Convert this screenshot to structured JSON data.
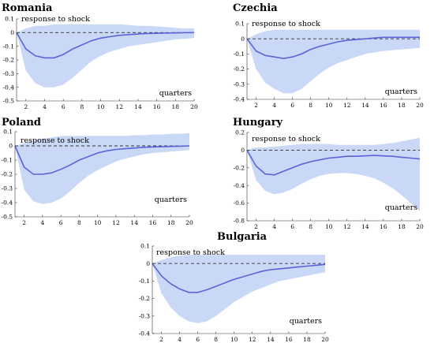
{
  "chart_data": [
    {
      "type": "line",
      "title": "Romania",
      "annotation": "response to shock",
      "xlabel": "quarters",
      "x": [
        1,
        2,
        3,
        4,
        5,
        6,
        7,
        8,
        9,
        10,
        11,
        12,
        13,
        14,
        15,
        16,
        17,
        18,
        19,
        20
      ],
      "xticks": [
        2,
        4,
        6,
        8,
        10,
        12,
        14,
        16,
        18,
        20
      ],
      "ylim": [
        -0.5,
        0.1
      ],
      "yticks": [
        0.1,
        0,
        -0.1,
        -0.2,
        -0.3,
        -0.4,
        -0.5
      ],
      "ytick_labels": [
        "0.1",
        "0",
        "-0.1",
        "-0.2",
        "-0.3",
        "-0.4",
        "-0.5"
      ],
      "series": [
        {
          "role": "response",
          "values": [
            0,
            -0.12,
            -0.17,
            -0.185,
            -0.185,
            -0.16,
            -0.12,
            -0.09,
            -0.06,
            -0.04,
            -0.03,
            -0.02,
            -0.015,
            -0.01,
            -0.007,
            -0.005,
            -0.003,
            -0.002,
            -0.001,
            0
          ]
        },
        {
          "role": "upper",
          "values": [
            0,
            0.03,
            0.05,
            0.05,
            0.06,
            0.06,
            0.06,
            0.06,
            0.06,
            0.06,
            0.06,
            0.06,
            0.055,
            0.05,
            0.05,
            0.045,
            0.04,
            0.035,
            0.03,
            0.03
          ]
        },
        {
          "role": "lower",
          "values": [
            0,
            -0.28,
            -0.37,
            -0.4,
            -0.4,
            -0.38,
            -0.33,
            -0.27,
            -0.21,
            -0.17,
            -0.14,
            -0.12,
            -0.1,
            -0.09,
            -0.08,
            -0.07,
            -0.06,
            -0.05,
            -0.045,
            -0.04
          ]
        }
      ]
    },
    {
      "type": "line",
      "title": "Czechia",
      "annotation": "response to shock",
      "xlabel": "quarters",
      "x": [
        1,
        2,
        3,
        4,
        5,
        6,
        7,
        8,
        9,
        10,
        11,
        12,
        13,
        14,
        15,
        16,
        17,
        18,
        19,
        20
      ],
      "xticks": [
        2,
        4,
        6,
        8,
        10,
        12,
        14,
        16,
        18,
        20
      ],
      "ylim": [
        -0.4,
        0.1
      ],
      "yticks": [
        0.1,
        0,
        -0.1,
        -0.2,
        -0.3,
        -0.4
      ],
      "ytick_labels": [
        "0.1",
        "0",
        "-0.1",
        "-0.2",
        "-0.3",
        "-0.4"
      ],
      "series": [
        {
          "role": "response",
          "values": [
            0,
            -0.08,
            -0.11,
            -0.12,
            -0.13,
            -0.12,
            -0.1,
            -0.07,
            -0.05,
            -0.035,
            -0.02,
            -0.01,
            -0.005,
            0,
            0.005,
            0.01,
            0.01,
            0.01,
            0.01,
            0.01
          ]
        },
        {
          "role": "upper",
          "values": [
            0,
            0.03,
            0.05,
            0.06,
            0.06,
            0.06,
            0.06,
            0.06,
            0.06,
            0.06,
            0.06,
            0.06,
            0.06,
            0.06,
            0.06,
            0.06,
            0.06,
            0.06,
            0.06,
            0.06
          ]
        },
        {
          "role": "lower",
          "values": [
            0,
            -0.2,
            -0.29,
            -0.33,
            -0.36,
            -0.36,
            -0.33,
            -0.28,
            -0.23,
            -0.19,
            -0.16,
            -0.14,
            -0.12,
            -0.1,
            -0.09,
            -0.08,
            -0.075,
            -0.07,
            -0.065,
            -0.06
          ]
        }
      ]
    },
    {
      "type": "line",
      "title": "Poland",
      "annotation": "response to shock",
      "xlabel": "quarters",
      "x": [
        1,
        2,
        3,
        4,
        5,
        6,
        7,
        8,
        9,
        10,
        11,
        12,
        13,
        14,
        15,
        16,
        17,
        18,
        19,
        20
      ],
      "xticks": [
        2,
        4,
        6,
        8,
        10,
        12,
        14,
        16,
        18,
        20
      ],
      "ylim": [
        -0.5,
        0.1
      ],
      "yticks": [
        0.1,
        0,
        -0.1,
        -0.2,
        -0.3,
        -0.4,
        -0.5
      ],
      "ytick_labels": [
        "0.1",
        "0",
        "-0.1",
        "-0.2",
        "-0.3",
        "-0.4",
        "-0.5"
      ],
      "series": [
        {
          "role": "response",
          "values": [
            0,
            -0.15,
            -0.2,
            -0.2,
            -0.19,
            -0.165,
            -0.135,
            -0.1,
            -0.075,
            -0.05,
            -0.035,
            -0.025,
            -0.02,
            -0.015,
            -0.01,
            -0.008,
            -0.006,
            -0.004,
            -0.002,
            0
          ]
        },
        {
          "role": "upper",
          "values": [
            0,
            0.02,
            0.04,
            0.05,
            0.06,
            0.07,
            0.07,
            0.07,
            0.07,
            0.07,
            0.07,
            0.07,
            0.07,
            0.075,
            0.075,
            0.08,
            0.08,
            0.085,
            0.085,
            0.09
          ]
        },
        {
          "role": "lower",
          "values": [
            0,
            -0.31,
            -0.39,
            -0.41,
            -0.4,
            -0.37,
            -0.32,
            -0.26,
            -0.21,
            -0.17,
            -0.14,
            -0.11,
            -0.09,
            -0.075,
            -0.06,
            -0.05,
            -0.045,
            -0.04,
            -0.035,
            -0.03
          ]
        }
      ]
    },
    {
      "type": "line",
      "title": "Hungary",
      "annotation": "response to shock",
      "xlabel": "quarters",
      "x": [
        1,
        2,
        3,
        4,
        5,
        6,
        7,
        8,
        9,
        10,
        11,
        12,
        13,
        14,
        15,
        16,
        17,
        18,
        19,
        20
      ],
      "xticks": [
        2,
        4,
        6,
        8,
        10,
        12,
        14,
        16,
        18,
        20
      ],
      "ylim": [
        -0.8,
        0.2
      ],
      "yticks": [
        0.2,
        0,
        -0.2,
        -0.4,
        -0.6,
        -0.8
      ],
      "ytick_labels": [
        "0.2",
        "0",
        "-0.2",
        "-0.4",
        "-0.6",
        "-0.8"
      ],
      "series": [
        {
          "role": "response",
          "values": [
            0,
            -0.18,
            -0.27,
            -0.28,
            -0.24,
            -0.2,
            -0.16,
            -0.13,
            -0.11,
            -0.09,
            -0.08,
            -0.07,
            -0.07,
            -0.065,
            -0.06,
            -0.065,
            -0.07,
            -0.08,
            -0.09,
            -0.1
          ]
        },
        {
          "role": "upper",
          "values": [
            0,
            0.03,
            0.03,
            0.04,
            0.05,
            0.06,
            0.07,
            0.07,
            0.07,
            0.07,
            0.06,
            0.06,
            0.06,
            0.06,
            0.06,
            0.07,
            0.08,
            0.1,
            0.12,
            0.14
          ]
        },
        {
          "role": "lower",
          "values": [
            0,
            -0.34,
            -0.46,
            -0.5,
            -0.48,
            -0.44,
            -0.38,
            -0.33,
            -0.29,
            -0.27,
            -0.26,
            -0.26,
            -0.27,
            -0.29,
            -0.32,
            -0.37,
            -0.43,
            -0.51,
            -0.6,
            -0.69
          ]
        }
      ]
    },
    {
      "type": "line",
      "title": "Bulgaria",
      "annotation": "response to shock",
      "xlabel": "quarters",
      "x": [
        1,
        2,
        3,
        4,
        5,
        6,
        7,
        8,
        9,
        10,
        11,
        12,
        13,
        14,
        15,
        16,
        17,
        18,
        19,
        20
      ],
      "xticks": [
        2,
        4,
        6,
        8,
        10,
        12,
        14,
        16,
        18,
        20
      ],
      "ylim": [
        -0.4,
        0.1
      ],
      "yticks": [
        0.1,
        0,
        -0.1,
        -0.2,
        -0.3,
        -0.4
      ],
      "ytick_labels": [
        "0.1",
        "0",
        "-0.1",
        "-0.2",
        "-0.3",
        "-0.4"
      ],
      "series": [
        {
          "role": "response",
          "values": [
            0,
            -0.07,
            -0.115,
            -0.145,
            -0.165,
            -0.165,
            -0.15,
            -0.13,
            -0.11,
            -0.09,
            -0.075,
            -0.06,
            -0.045,
            -0.035,
            -0.03,
            -0.025,
            -0.02,
            -0.015,
            -0.01,
            -0.005
          ]
        },
        {
          "role": "upper",
          "values": [
            0,
            0.02,
            0.035,
            0.045,
            0.05,
            0.05,
            0.05,
            0.05,
            0.05,
            0.05,
            0.05,
            0.05,
            0.05,
            0.05,
            0.05,
            0.05,
            0.05,
            0.05,
            0.05,
            0.05
          ]
        },
        {
          "role": "lower",
          "values": [
            0,
            -0.17,
            -0.25,
            -0.3,
            -0.33,
            -0.34,
            -0.33,
            -0.3,
            -0.26,
            -0.22,
            -0.19,
            -0.16,
            -0.14,
            -0.12,
            -0.1,
            -0.09,
            -0.08,
            -0.07,
            -0.06,
            -0.05
          ]
        }
      ]
    }
  ]
}
